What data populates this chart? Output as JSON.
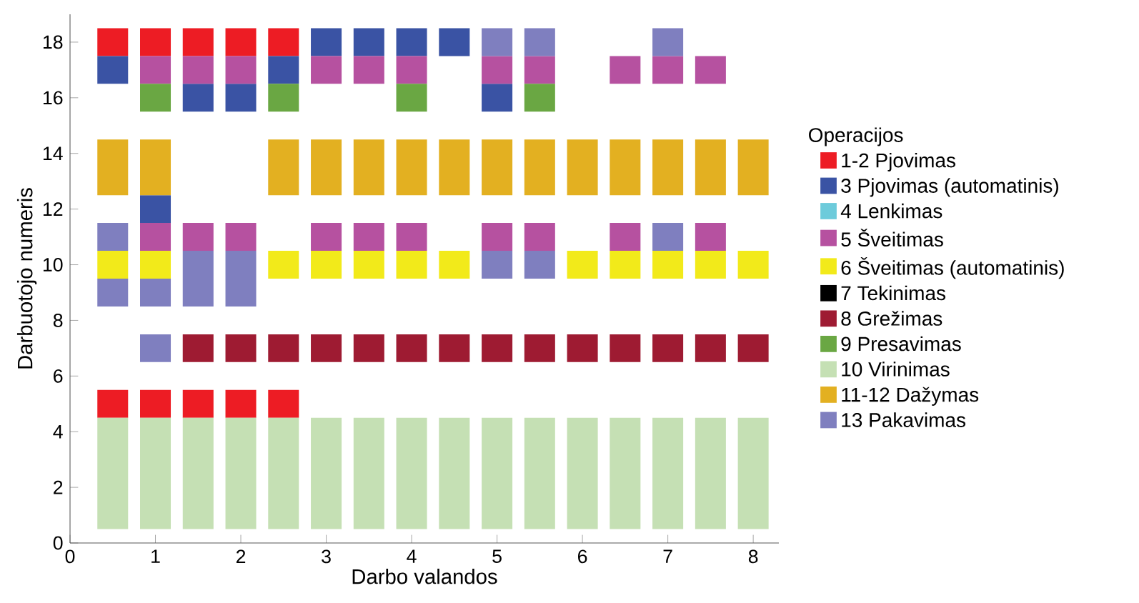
{
  "chart_data": {
    "type": "bar",
    "xlabel": "Darbo valandos",
    "ylabel": "Darbuotojo numeris",
    "legend_title": "Operacijos",
    "legend": "right",
    "grid": false,
    "xlim": [
      0,
      8.3
    ],
    "ylim": [
      0,
      19
    ],
    "xticks": [
      0,
      1,
      2,
      3,
      4,
      5,
      6,
      7,
      8
    ],
    "yticks": [
      0,
      2,
      4,
      6,
      8,
      10,
      12,
      14,
      16,
      18
    ],
    "series": [
      {
        "name": "1-2 Pjovimas",
        "color": "#ed1c24",
        "x": [
          0.5,
          1,
          1.5,
          2,
          2.5
        ],
        "base": [
          17.5,
          17.5,
          17.5,
          17.5,
          17.5
        ],
        "values": [
          1,
          1,
          1,
          1,
          1
        ]
      },
      {
        "color": "#ed1c24",
        "x": [
          0.5,
          1,
          1.5,
          2,
          2.5
        ],
        "base": [
          4.5,
          4.5,
          4.5,
          4.5,
          4.5
        ],
        "values": [
          1,
          1,
          1,
          1,
          1
        ]
      },
      {
        "name": "3 Pjovimas (automatinis)",
        "color": "#3a53a4",
        "x": [
          0.5,
          1,
          1.5,
          2,
          2.5,
          3,
          3.5,
          4,
          4.5,
          5
        ],
        "base": [
          16.5,
          11.5,
          15.5,
          15.5,
          16.5,
          17.5,
          17.5,
          17.5,
          17.5,
          15.5
        ],
        "values": [
          1,
          1,
          1,
          1,
          1,
          1,
          1,
          1,
          1,
          1
        ]
      },
      {
        "name": "4 Lenkimas",
        "color": "#6dcbdb"
      },
      {
        "name": "5 Šveitimas",
        "color": "#b651a0",
        "x": [
          1,
          1.5,
          2,
          3,
          3.5,
          4,
          5,
          5.5,
          6.5,
          7,
          7.5
        ],
        "base": [
          16.5,
          16.5,
          16.5,
          16.5,
          16.5,
          16.5,
          16.5,
          16.5,
          16.5,
          16.5,
          16.5
        ],
        "values": [
          1,
          1,
          1,
          1,
          1,
          1,
          1,
          1,
          1,
          1,
          1
        ]
      },
      {
        "color": "#b651a0",
        "x": [
          1,
          1.5,
          2,
          3,
          3.5,
          4,
          5,
          5.5,
          6.5,
          7.5
        ],
        "base": [
          10.5,
          10.5,
          10.5,
          10.5,
          10.5,
          10.5,
          10.5,
          10.5,
          10.5,
          10.5
        ],
        "values": [
          1,
          1,
          1,
          1,
          1,
          1,
          1,
          1,
          1,
          1
        ]
      },
      {
        "name": "6 Šveitimas (automatinis)",
        "color": "#f2ea1a",
        "x": [
          0.5,
          1,
          2.5,
          3,
          3.5,
          4,
          4.5,
          6,
          6.5,
          7,
          7.5,
          8
        ],
        "base": [
          9.5,
          9.5,
          9.5,
          9.5,
          9.5,
          9.5,
          9.5,
          9.5,
          9.5,
          9.5,
          9.5,
          9.5
        ],
        "values": [
          1,
          1,
          1,
          1,
          1,
          1,
          1,
          1,
          1,
          1,
          1,
          1
        ]
      },
      {
        "name": "7 Tekinimas",
        "color": "#000000"
      },
      {
        "name": "8 Grežimas",
        "color": "#9e1b32",
        "x": [
          1.5,
          2,
          2.5,
          3,
          3.5,
          4,
          4.5,
          5,
          5.5,
          6,
          6.5,
          7,
          7.5,
          8
        ],
        "base": [
          6.5,
          6.5,
          6.5,
          6.5,
          6.5,
          6.5,
          6.5,
          6.5,
          6.5,
          6.5,
          6.5,
          6.5,
          6.5,
          6.5
        ],
        "values": [
          1,
          1,
          1,
          1,
          1,
          1,
          1,
          1,
          1,
          1,
          1,
          1,
          1,
          1
        ]
      },
      {
        "name": "9 Presavimas",
        "color": "#6aa743",
        "x": [
          1,
          2.5,
          4,
          5.5
        ],
        "base": [
          15.5,
          15.5,
          15.5,
          15.5
        ],
        "values": [
          1,
          1,
          1,
          1
        ]
      },
      {
        "name": "10 Virinimas",
        "color": "#c5e0b4",
        "x": [
          0.5,
          1,
          1.5,
          2,
          2.5,
          3,
          3.5,
          4,
          4.5,
          5,
          5.5,
          6,
          6.5,
          7,
          7.5,
          8
        ],
        "base": [
          0.5,
          0.5,
          0.5,
          0.5,
          0.5,
          0.5,
          0.5,
          0.5,
          0.5,
          0.5,
          0.5,
          0.5,
          0.5,
          0.5,
          0.5,
          0.5
        ],
        "values": [
          4,
          4,
          4,
          4,
          4,
          4,
          4,
          4,
          4,
          4,
          4,
          4,
          4,
          4,
          4,
          4
        ]
      },
      {
        "name": "11-12 Dažymas",
        "color": "#e3b021",
        "x": [
          0.5,
          1,
          2.5,
          3,
          3.5,
          4,
          4.5,
          5,
          5.5,
          6,
          6.5,
          7,
          7.5,
          8
        ],
        "base": [
          12.5,
          12.5,
          12.5,
          12.5,
          12.5,
          12.5,
          12.5,
          12.5,
          12.5,
          12.5,
          12.5,
          12.5,
          12.5,
          12.5
        ],
        "values": [
          2,
          2,
          2,
          2,
          2,
          2,
          2,
          2,
          2,
          2,
          2,
          2,
          2,
          2
        ]
      },
      {
        "name": "13 Pakavimas",
        "color": "#7f7fbf",
        "x": [
          0.5,
          1,
          1.5,
          2,
          5,
          5.5,
          7
        ],
        "base": [
          10.5,
          6.5,
          8.5,
          8.5,
          17.5,
          17.5,
          17.5
        ],
        "values": [
          1,
          1,
          2,
          2,
          1,
          1,
          1
        ]
      },
      {
        "color": "#7f7fbf",
        "x": [
          0.5,
          1,
          5,
          5.5,
          7
        ],
        "base": [
          8.5,
          8.5,
          9.5,
          9.5,
          10.5
        ],
        "values": [
          1,
          1,
          1,
          1,
          1
        ]
      }
    ]
  }
}
